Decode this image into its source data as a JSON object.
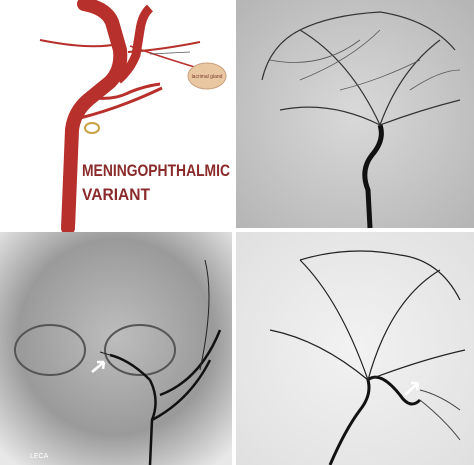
{
  "illustration": {
    "title": [
      "MENINGOPHTHALMIC",
      "VARIANT"
    ],
    "gland": "lacrimal gland"
  },
  "angiogram_frontal": {
    "label": "LECA"
  }
}
